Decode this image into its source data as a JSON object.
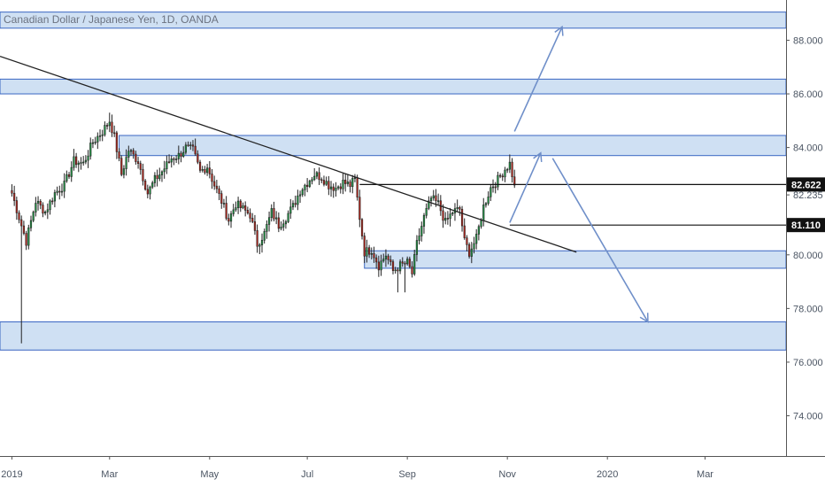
{
  "title": "Canadian Dollar / Japanese Yen, 1D, OANDA",
  "chart_data": {
    "type": "candlestick",
    "symbol": "CADJPY",
    "timeframe": "1D",
    "yaxis": {
      "range": [
        72.5,
        89.5
      ],
      "ticks": [
        "88.000",
        "86.000",
        "84.000",
        "82.235",
        "80.000",
        "78.000",
        "76.000",
        "74.000"
      ]
    },
    "xaxis": {
      "ticks": [
        "2019",
        "Mar",
        "May",
        "Jul",
        "Sep",
        "Nov",
        "2020",
        "Mar"
      ],
      "tick_index": [
        0,
        41,
        83,
        124,
        166,
        208,
        250,
        291
      ],
      "range_index": [
        -5,
        325
      ]
    },
    "price_labels": [
      {
        "text": "82.622",
        "price": 82.622
      },
      {
        "text": "81.110",
        "price": 81.11
      }
    ],
    "horizontal_lines": [
      82.622,
      81.11
    ],
    "zones": [
      {
        "x0": -5,
        "x1": 325,
        "y0": 88.45,
        "y1": 89.05
      },
      {
        "x0": -5,
        "x1": 325,
        "y0": 86.0,
        "y1": 86.55
      },
      {
        "x0": 45,
        "x1": 325,
        "y0": 83.7,
        "y1": 84.45
      },
      {
        "x0": 148,
        "x1": 325,
        "y0": 79.5,
        "y1": 80.15
      },
      {
        "x0": -5,
        "x1": 325,
        "y0": 76.45,
        "y1": 77.5
      }
    ],
    "trendline": {
      "x0": -5,
      "y0": 87.4,
      "x1": 237,
      "y1": 80.1
    },
    "arrows": [
      {
        "x0": 211,
        "y0": 84.6,
        "x1": 231,
        "y1": 88.5
      },
      {
        "x0": 209,
        "y0": 81.2,
        "x1": 222,
        "y1": 83.8
      },
      {
        "x0": 227,
        "y0": 83.6,
        "x1": 267,
        "y1": 77.5
      }
    ],
    "close_path": [
      [
        0,
        82.3
      ],
      [
        4,
        81.1
      ],
      [
        6,
        80.5
      ],
      [
        10,
        82.0
      ],
      [
        14,
        81.6
      ],
      [
        18,
        82.3
      ],
      [
        22,
        82.6
      ],
      [
        26,
        83.5
      ],
      [
        30,
        83.4
      ],
      [
        34,
        84.2
      ],
      [
        38,
        84.6
      ],
      [
        41,
        85.0
      ],
      [
        43,
        84.4
      ],
      [
        46,
        83.0
      ],
      [
        49,
        83.9
      ],
      [
        53,
        83.5
      ],
      [
        57,
        82.3
      ],
      [
        60,
        82.8
      ],
      [
        63,
        83.1
      ],
      [
        67,
        83.6
      ],
      [
        70,
        83.7
      ],
      [
        73,
        84.0
      ],
      [
        76,
        83.9
      ],
      [
        79,
        83.1
      ],
      [
        82,
        83.3
      ],
      [
        85,
        82.6
      ],
      [
        88,
        82.0
      ],
      [
        91,
        81.3
      ],
      [
        94,
        81.9
      ],
      [
        97,
        81.7
      ],
      [
        100,
        81.5
      ],
      [
        103,
        80.4
      ],
      [
        106,
        80.8
      ],
      [
        109,
        81.6
      ],
      [
        112,
        81.1
      ],
      [
        115,
        81.4
      ],
      [
        118,
        81.8
      ],
      [
        121,
        82.4
      ],
      [
        124,
        82.7
      ],
      [
        127,
        83.0
      ],
      [
        130,
        82.9
      ],
      [
        133,
        82.6
      ],
      [
        136,
        82.5
      ],
      [
        139,
        82.7
      ],
      [
        142,
        82.6
      ],
      [
        144,
        82.8
      ],
      [
        146,
        81.4
      ],
      [
        148,
        80.1
      ],
      [
        151,
        80.2
      ],
      [
        154,
        79.6
      ],
      [
        157,
        80.0
      ],
      [
        160,
        79.4
      ],
      [
        163,
        79.6
      ],
      [
        166,
        79.7
      ],
      [
        168,
        79.3
      ],
      [
        170,
        80.4
      ],
      [
        173,
        81.4
      ],
      [
        176,
        82.1
      ],
      [
        179,
        81.9
      ],
      [
        182,
        81.2
      ],
      [
        185,
        81.6
      ],
      [
        188,
        81.7
      ],
      [
        190,
        80.5
      ],
      [
        192,
        80.1
      ],
      [
        195,
        80.6
      ],
      [
        198,
        81.8
      ],
      [
        201,
        82.5
      ],
      [
        204,
        82.8
      ],
      [
        207,
        83.2
      ],
      [
        209,
        83.4
      ],
      [
        211,
        82.6
      ]
    ]
  }
}
